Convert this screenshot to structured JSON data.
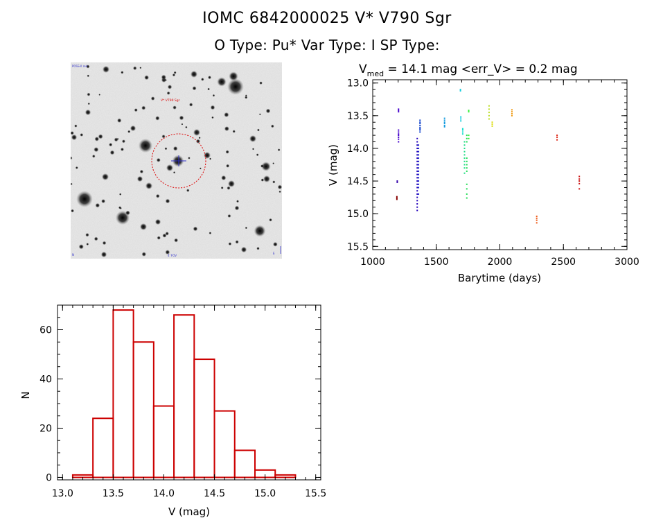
{
  "header": {
    "title": "IOMC 6842000025    V* V790 Sgr",
    "subtitle": "O Type: Pu*   Var Type: I   SP Type:"
  },
  "image_panel": {
    "label_top_left": "POSS-II red",
    "label_target": "V* V790 Sgr",
    "label_bottom_center": "4' FOV",
    "label_bottom_left": "N",
    "label_bottom_right": "E",
    "colors": {
      "circle": "#dd0000",
      "crosshair": "#3333cc"
    }
  },
  "chart_data": [
    {
      "type": "scatter",
      "title_prefix": "V",
      "title_subscript": "med",
      "title_suffix": " = 14.1 mag <err_V> = 0.2 mag",
      "xlabel": "Barytime (days)",
      "ylabel": "V (mag)",
      "xlim": [
        1000,
        3000
      ],
      "ylim": [
        15.55,
        12.95
      ],
      "y_inverted": true,
      "xticks": [
        1000,
        1500,
        2000,
        2500,
        3000
      ],
      "yticks": [
        13.0,
        13.5,
        14.0,
        14.5,
        15.0,
        15.5
      ],
      "grid": false,
      "series": [
        {
          "x": 1190,
          "color": "#880000",
          "v": [
            14.74,
            14.76,
            14.78
          ]
        },
        {
          "x": 1193,
          "color": "#3300aa",
          "v": [
            14.5,
            14.52
          ]
        },
        {
          "x": 1203,
          "color": "#4400cc",
          "v": [
            13.4,
            13.42,
            13.44,
            13.72,
            13.75,
            13.78,
            13.8,
            13.83,
            13.86,
            13.9
          ]
        },
        {
          "x": 1350,
          "color": "#2200bb",
          "v": [
            13.85,
            13.9,
            13.95,
            14.0,
            14.05,
            14.1,
            14.15,
            14.2,
            14.25,
            14.3,
            14.35,
            14.4,
            14.45,
            14.5,
            14.55,
            14.6,
            14.65,
            14.7,
            14.75,
            14.8,
            14.85,
            14.9,
            14.95
          ]
        },
        {
          "x": 1360,
          "color": "#1a22cc",
          "v": [
            13.95,
            14.0,
            14.05,
            14.1,
            14.15,
            14.2,
            14.25,
            14.3,
            14.35,
            14.4,
            14.45,
            14.5,
            14.55,
            14.6,
            14.7
          ]
        },
        {
          "x": 1372,
          "color": "#1144cc",
          "v": [
            13.57,
            13.6,
            13.62,
            13.65,
            13.68,
            13.7,
            13.72,
            13.75
          ]
        },
        {
          "x": 1565,
          "color": "#1199dd",
          "v": [
            13.54,
            13.57,
            13.6,
            13.62,
            13.65,
            13.67
          ]
        },
        {
          "x": 1690,
          "color": "#11ccdd",
          "v": [
            13.1,
            13.12
          ]
        },
        {
          "x": 1693,
          "color": "#11ccdd",
          "v": [
            13.52,
            13.55,
            13.58
          ]
        },
        {
          "x": 1708,
          "color": "#11ddcc",
          "v": [
            13.7,
            13.72,
            13.75,
            13.78
          ]
        },
        {
          "x": 1722,
          "color": "#22dd88",
          "v": [
            13.9,
            13.95,
            14.0,
            14.05,
            14.1,
            14.15,
            14.2,
            14.25,
            14.3,
            14.38
          ]
        },
        {
          "x": 1740,
          "color": "#22dd55",
          "v": [
            13.8,
            13.85,
            13.9,
            14.15,
            14.2,
            14.25,
            14.3,
            14.35,
            14.55,
            14.62,
            14.7,
            14.76
          ]
        },
        {
          "x": 1755,
          "color": "#33ee33",
          "v": [
            13.42,
            13.44,
            13.8,
            13.85
          ]
        },
        {
          "x": 1915,
          "color": "#bbdd22",
          "v": [
            13.35,
            13.4,
            13.45,
            13.5,
            13.55
          ]
        },
        {
          "x": 1940,
          "color": "#dddd11",
          "v": [
            13.6,
            13.63,
            13.66
          ]
        },
        {
          "x": 2095,
          "color": "#ee9911",
          "v": [
            13.41,
            13.44,
            13.47,
            13.5
          ]
        },
        {
          "x": 2290,
          "color": "#ee5511",
          "v": [
            15.04,
            15.07,
            15.1,
            15.14
          ]
        },
        {
          "x": 2450,
          "color": "#dd2211",
          "v": [
            13.8,
            13.83,
            13.87
          ]
        },
        {
          "x": 2625,
          "color": "#cc1111",
          "v": [
            14.43,
            14.47,
            14.5,
            14.54,
            14.62
          ]
        }
      ]
    },
    {
      "type": "bar",
      "subtype": "histogram",
      "xlabel": "V (mag)",
      "ylabel": "N",
      "xlim": [
        12.95,
        15.55
      ],
      "ylim": [
        -1,
        70
      ],
      "xticks": [
        13.0,
        13.5,
        14.0,
        14.5,
        15.0,
        15.5
      ],
      "yticks": [
        0,
        20,
        40,
        60
      ],
      "bin_edges": [
        13.1,
        13.3,
        13.5,
        13.7,
        13.9,
        14.1,
        14.3,
        14.5,
        14.7,
        14.9,
        15.1,
        15.3
      ],
      "values": [
        1,
        24,
        68,
        55,
        29,
        66,
        48,
        27,
        11,
        3,
        1
      ],
      "color": "#cc0000",
      "grid": false
    }
  ]
}
